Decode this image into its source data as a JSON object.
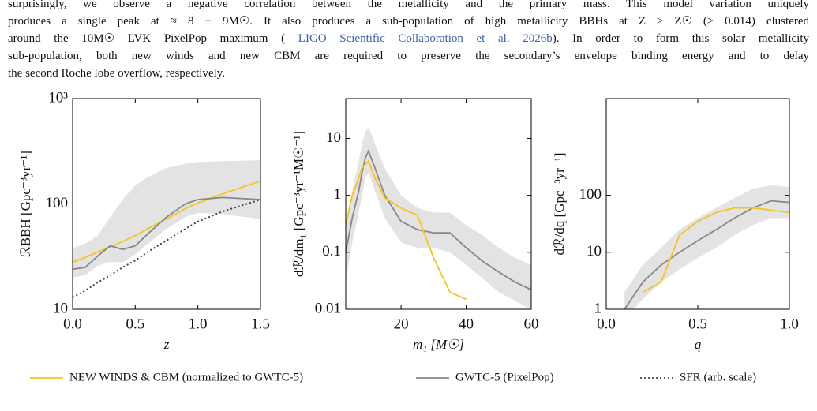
{
  "paragraph": [
    {
      "parts": [
        "surprisingly, we observe a negative correlation between the metallicity and the primary mass. This model variation uniquely"
      ]
    },
    {
      "parts": [
        "produces a single peak at ≈ 8 − 9M☉. It also produces a sub-population of high metallicity BBHs at Z ≥ Z☉ (≥ 0.014) clustered"
      ]
    },
    {
      "parts": [
        "around the 10M☉ LVK PixelPop maximum (",
        "LIGO Scientific Collaboration et al. 2026b",
        "). In order to form this solar metallicity"
      ]
    },
    {
      "parts": [
        "sub-population, both new winds and new CBM are required to preserve the secondary’s envelope binding energy and to delay"
      ]
    },
    {
      "parts": [
        "the second Roche lobe overflow, respectively."
      ]
    }
  ],
  "chart_data": [
    {
      "type": "line",
      "xlabel": "z",
      "ylabel": "ℛBBH [Gpc⁻³yr⁻¹]",
      "ylog": true,
      "xlim": [
        0,
        1.5
      ],
      "ylim": [
        10,
        1000
      ],
      "xticks": [
        {
          "value": 0,
          "label": "0.0"
        },
        {
          "value": 0.5,
          "label": "0.5"
        },
        {
          "value": 1,
          "label": "1.0"
        },
        {
          "value": 1.5,
          "label": "1.5"
        }
      ],
      "yticks": [
        10,
        100,
        {
          "value": 1000,
          "label": "10³"
        }
      ],
      "x": [
        0,
        0.1,
        0.2,
        0.3,
        0.4,
        0.5,
        0.6,
        0.75,
        0.9,
        1.0,
        1.2,
        1.5
      ],
      "band": {
        "color": "#e3e3e3",
        "lower": [
          20,
          21,
          26,
          28,
          28,
          33,
          42,
          58,
          75,
          82,
          80,
          72
        ],
        "upper": [
          38,
          42,
          50,
          75,
          110,
          150,
          180,
          220,
          240,
          250,
          255,
          260
        ]
      },
      "series": [
        {
          "name": "NEW WINDS & CBM (normalized to GWTC-5)",
          "color": "#f5c518",
          "linestyle": "solid",
          "values": [
            28,
            31,
            35,
            39,
            44,
            50,
            58,
            72,
            90,
            102,
            125,
            165
          ]
        },
        {
          "name": "GWTC-5 (PixelPop)",
          "color": "#888888",
          "linestyle": "solid",
          "values": [
            24,
            25,
            32,
            40,
            37,
            40,
            52,
            75,
            100,
            110,
            115,
            110
          ]
        },
        {
          "name": "SFR (arb. scale)",
          "color": "#444444",
          "linestyle": "dotted",
          "values": [
            13,
            15,
            18,
            21,
            25,
            29,
            35,
            45,
            58,
            68,
            85,
            110
          ]
        }
      ]
    },
    {
      "type": "line",
      "xlabel": "m₁ [M☉]",
      "ylabel": "dℛ/dm₁ [Gpc⁻³yr⁻¹M☉⁻¹]",
      "ylog": true,
      "xlim": [
        3,
        60
      ],
      "ylim": [
        0.01,
        50
      ],
      "xticks": [
        20,
        40,
        60
      ],
      "yticks": [
        0.01,
        0.1,
        1,
        10
      ],
      "x": [
        3,
        5,
        7,
        8,
        9,
        10,
        12,
        15,
        20,
        25,
        30,
        35,
        40,
        45,
        50,
        55,
        60
      ],
      "band": {
        "color": "#e3e3e3",
        "lower": [
          0.03,
          0.15,
          0.5,
          1,
          2,
          2.5,
          1.2,
          0.4,
          0.15,
          0.12,
          0.12,
          0.1,
          0.06,
          0.035,
          0.02,
          0.014,
          0.01
        ],
        "upper": [
          0.3,
          1.2,
          4,
          8,
          13,
          16,
          8,
          3,
          1,
          0.6,
          0.5,
          0.5,
          0.3,
          0.2,
          0.12,
          0.08,
          0.06
        ]
      },
      "series": [
        {
          "color": "#888888",
          "linestyle": "solid",
          "values": [
            0.1,
            0.4,
            1.2,
            2.5,
            4.5,
            6,
            3,
            1,
            0.35,
            0.25,
            0.22,
            0.22,
            0.12,
            0.07,
            0.045,
            0.03,
            0.022
          ]
        },
        {
          "color": "#f5c518",
          "linestyle": "solid",
          "values": [
            0.3,
            1,
            2,
            3,
            3.5,
            4,
            2,
            0.9,
            0.6,
            0.45,
            0.08,
            0.02,
            0.015,
            null,
            null,
            null,
            null
          ]
        }
      ]
    },
    {
      "type": "line",
      "xlabel": "q",
      "ylabel": "dℛ/dq [Gpc⁻³yr⁻¹]",
      "ylog": true,
      "xlim": [
        0,
        1
      ],
      "ylim": [
        1,
        5000
      ],
      "xticks": [
        {
          "value": 0,
          "label": "0.0"
        },
        0.5,
        {
          "value": 1,
          "label": "1.0"
        }
      ],
      "yticks": [
        1,
        10,
        100
      ],
      "x": [
        0.1,
        0.2,
        0.3,
        0.4,
        0.5,
        0.6,
        0.7,
        0.8,
        0.9,
        1.0
      ],
      "band": {
        "color": "#e3e3e3",
        "lower": [
          0.7,
          1.5,
          3,
          5,
          8,
          12,
          20,
          30,
          40,
          40
        ],
        "upper": [
          2,
          6,
          12,
          25,
          40,
          60,
          90,
          130,
          150,
          140
        ]
      },
      "series": [
        {
          "color": "#888888",
          "linestyle": "solid",
          "values": [
            1,
            3,
            6,
            10,
            16,
            25,
            40,
            60,
            80,
            75
          ]
        },
        {
          "color": "#f5c518",
          "linestyle": "solid",
          "values": [
            null,
            2,
            3,
            20,
            35,
            50,
            60,
            60,
            55,
            50
          ]
        }
      ]
    }
  ]
}
